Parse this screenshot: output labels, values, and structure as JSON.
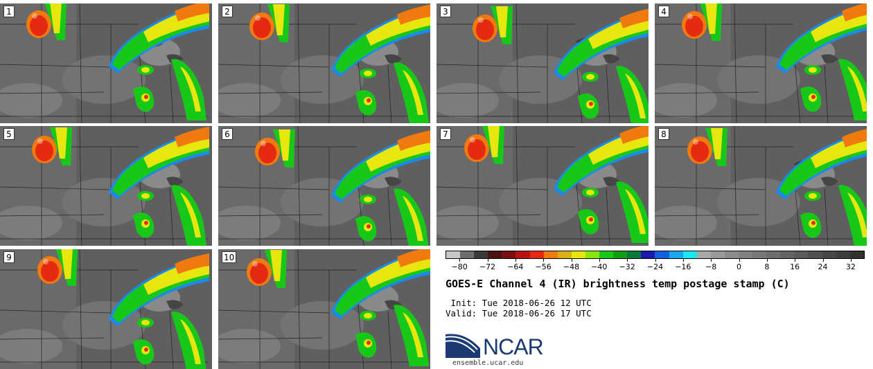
{
  "panels": [
    {
      "label": "1"
    },
    {
      "label": "2"
    },
    {
      "label": "3"
    },
    {
      "label": "4"
    },
    {
      "label": "5"
    },
    {
      "label": "6"
    },
    {
      "label": "7"
    },
    {
      "label": "8"
    },
    {
      "label": "9"
    },
    {
      "label": "10"
    }
  ],
  "colorbar": {
    "colors": [
      "#c8c8c8",
      "#6e6e6e",
      "#3a3a3a",
      "#4a1212",
      "#7a0f0f",
      "#b81212",
      "#e52a12",
      "#f07a10",
      "#d9b01a",
      "#e7e70f",
      "#8ae70f",
      "#18c818",
      "#10a010",
      "#0a7a3a",
      "#1a1ab0",
      "#1060e0",
      "#1aa8f0",
      "#1ae8f0",
      "#a8a8a8",
      "#9a9a9a",
      "#8c8c8c",
      "#828282",
      "#787878",
      "#6e6e6e",
      "#646464",
      "#5a5a5a",
      "#505050",
      "#464646",
      "#3c3c3c",
      "#323232"
    ],
    "ticks": [
      "−80",
      "−72",
      "−64",
      "−56",
      "−48",
      "−40",
      "−32",
      "−24",
      "−16",
      "−8",
      "0",
      "8",
      "16",
      "24",
      "32"
    ]
  },
  "title": "GOES-E Channel 4 (IR) brightness temp postage stamp (C)",
  "init_text": " Init: Tue 2018-06-26 12 UTC",
  "valid_text": "Valid: Tue 2018-06-26 17 UTC",
  "logo_text": "NCAR",
  "url": "ensemble.ucar.edu"
}
